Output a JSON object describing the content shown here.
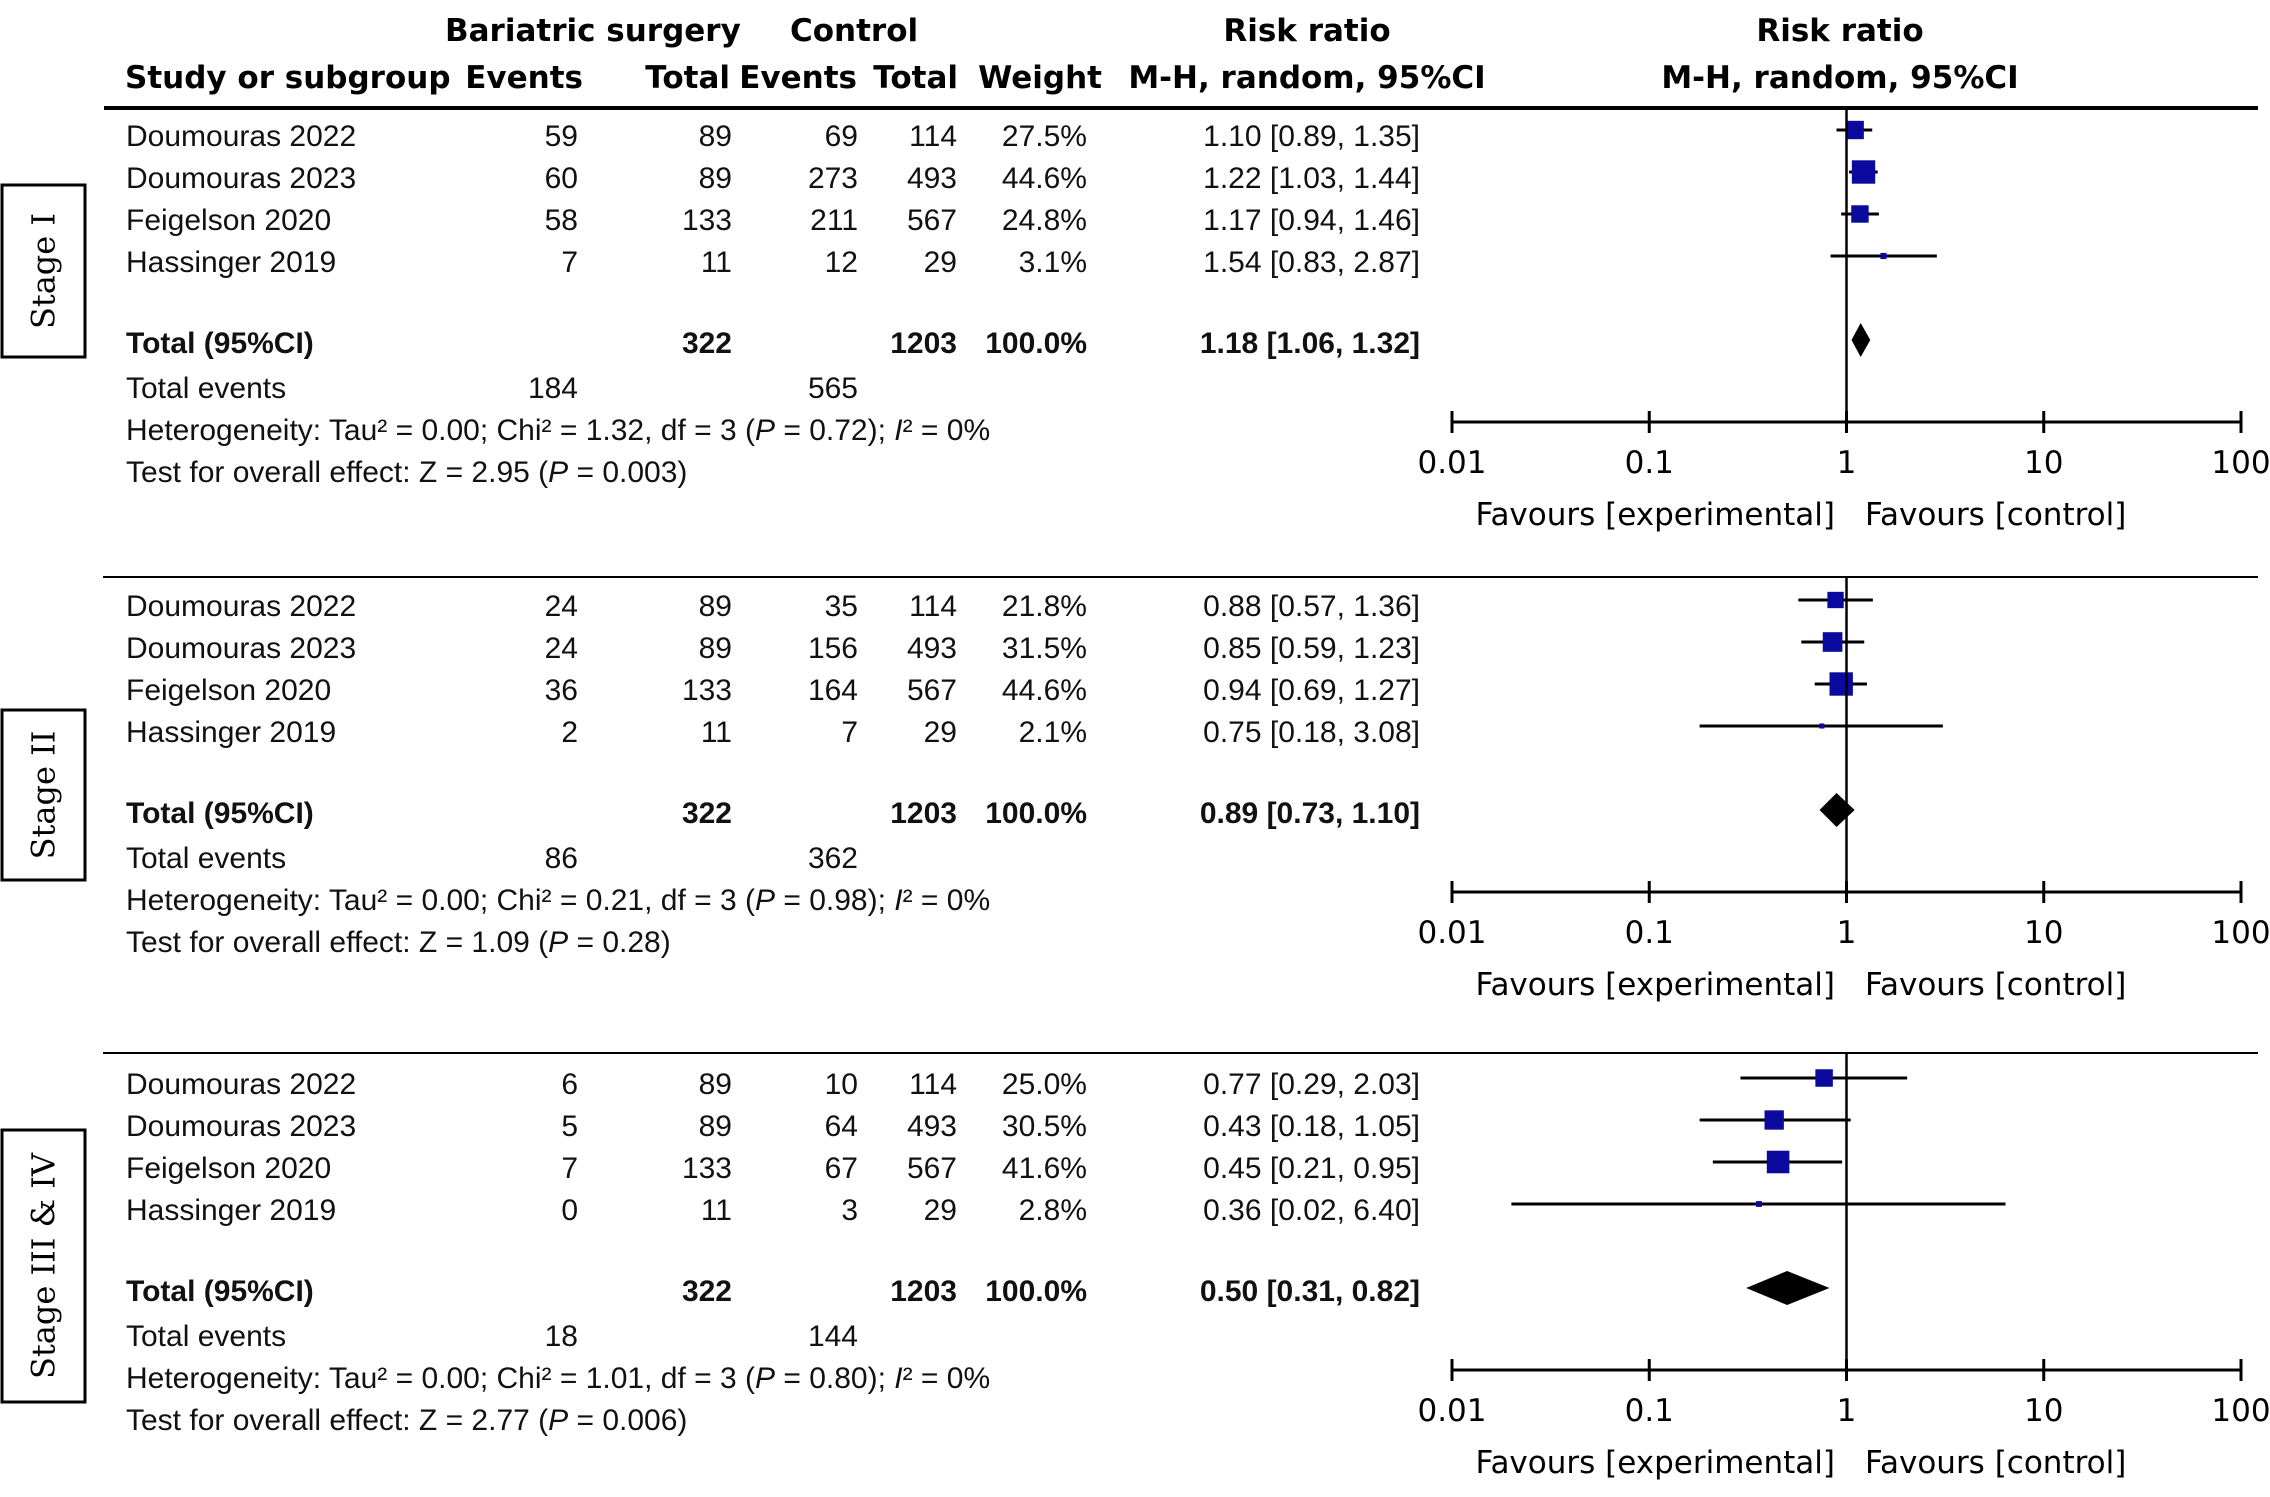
{
  "header": {
    "group1": "Bariatric surgery",
    "group2": "Control",
    "rr_text_title": "Risk ratio",
    "rr_text_sub": "M-H, random, 95%CI",
    "rr_plot_title": "Risk ratio",
    "rr_plot_sub": "M-H, random, 95%CI",
    "col_study": "Study or subgroup",
    "col_events1": "Events",
    "col_total1": "Total",
    "col_events2": "Events",
    "col_total2": "Total",
    "col_weight": "Weight"
  },
  "colors": {
    "study_marker": "#0a0a9e",
    "pooled_diamond": "#000000",
    "lines": "#000000"
  },
  "chart_data": {
    "type": "forest",
    "measure": "Risk ratio (M-H, random, 95%CI)",
    "x_scale": "log",
    "xlim": [
      0.01,
      100
    ],
    "x_ticks": [
      "0.01",
      "0.1",
      "1",
      "10",
      "100"
    ],
    "x_label_left": "Favours [experimental]",
    "x_label_right": "Favours [control]",
    "panels": [
      {
        "stage": "Stage I",
        "studies": [
          {
            "name": "Doumouras 2022",
            "e1": "59",
            "n1": "89",
            "e2": "69",
            "n2": "114",
            "weight": "27.5%",
            "weight_value": 27.5,
            "rr": 1.1,
            "lo": 0.89,
            "hi": 1.35,
            "rr_text": "1.10 [0.89, 1.35]"
          },
          {
            "name": "Doumouras 2023",
            "e1": "60",
            "n1": "89",
            "e2": "273",
            "n2": "493",
            "weight": "44.6%",
            "weight_value": 44.6,
            "rr": 1.22,
            "lo": 1.03,
            "hi": 1.44,
            "rr_text": "1.22 [1.03, 1.44]"
          },
          {
            "name": "Feigelson 2020",
            "e1": "58",
            "n1": "133",
            "e2": "211",
            "n2": "567",
            "weight": "24.8%",
            "weight_value": 24.8,
            "rr": 1.17,
            "lo": 0.94,
            "hi": 1.46,
            "rr_text": "1.17 [0.94, 1.46]"
          },
          {
            "name": "Hassinger 2019",
            "e1": "7",
            "n1": "11",
            "e2": "12",
            "n2": "29",
            "weight": "3.1%",
            "weight_value": 3.1,
            "rr": 1.54,
            "lo": 0.83,
            "hi": 2.87,
            "rr_text": "1.54 [0.83, 2.87]"
          }
        ],
        "total": {
          "label": "Total (95%CI)",
          "n1": "322",
          "n2": "1203",
          "weight": "100.0%",
          "rr": 1.18,
          "lo": 1.06,
          "hi": 1.32,
          "rr_text": "1.18 [1.06, 1.32]"
        },
        "total_events": {
          "label": "Total events",
          "e1": "184",
          "e2": "565"
        },
        "heterogeneity": {
          "prefix": "Heterogeneity: Tau² = 0.00; Chi² = 1.32, df = 3 (",
          "p_sym": "P",
          "p_val": " = 0.72); ",
          "i_sym": "I",
          "i_val": "² = 0%"
        },
        "overall": {
          "prefix": "Test for overall effect: Z = 2.95 (",
          "p_sym": "P",
          "p_val": " = 0.003)"
        }
      },
      {
        "stage": "Stage II",
        "studies": [
          {
            "name": "Doumouras 2022",
            "e1": "24",
            "n1": "89",
            "e2": "35",
            "n2": "114",
            "weight": "21.8%",
            "weight_value": 21.8,
            "rr": 0.88,
            "lo": 0.57,
            "hi": 1.36,
            "rr_text": "0.88 [0.57, 1.36]"
          },
          {
            "name": "Doumouras 2023",
            "e1": "24",
            "n1": "89",
            "e2": "156",
            "n2": "493",
            "weight": "31.5%",
            "weight_value": 31.5,
            "rr": 0.85,
            "lo": 0.59,
            "hi": 1.23,
            "rr_text": "0.85 [0.59, 1.23]"
          },
          {
            "name": "Feigelson 2020",
            "e1": "36",
            "n1": "133",
            "e2": "164",
            "n2": "567",
            "weight": "44.6%",
            "weight_value": 44.6,
            "rr": 0.94,
            "lo": 0.69,
            "hi": 1.27,
            "rr_text": "0.94 [0.69, 1.27]"
          },
          {
            "name": "Hassinger 2019",
            "e1": "2",
            "n1": "11",
            "e2": "7",
            "n2": "29",
            "weight": "2.1%",
            "weight_value": 2.1,
            "rr": 0.75,
            "lo": 0.18,
            "hi": 3.08,
            "rr_text": "0.75 [0.18, 3.08]"
          }
        ],
        "total": {
          "label": "Total (95%CI)",
          "n1": "322",
          "n2": "1203",
          "weight": "100.0%",
          "rr": 0.89,
          "lo": 0.73,
          "hi": 1.1,
          "rr_text": "0.89 [0.73, 1.10]"
        },
        "total_events": {
          "label": "Total events",
          "e1": "86",
          "e2": "362"
        },
        "heterogeneity": {
          "prefix": "Heterogeneity: Tau² = 0.00; Chi² = 0.21, df = 3 (",
          "p_sym": "P",
          "p_val": " = 0.98); ",
          "i_sym": "I",
          "i_val": "² = 0%"
        },
        "overall": {
          "prefix": "Test for overall effect: Z = 1.09 (",
          "p_sym": "P",
          "p_val": " = 0.28)"
        }
      },
      {
        "stage": "Stage III & IV",
        "studies": [
          {
            "name": "Doumouras 2022",
            "e1": "6",
            "n1": "89",
            "e2": "10",
            "n2": "114",
            "weight": "25.0%",
            "weight_value": 25.0,
            "rr": 0.77,
            "lo": 0.29,
            "hi": 2.03,
            "rr_text": "0.77 [0.29, 2.03]"
          },
          {
            "name": "Doumouras 2023",
            "e1": "5",
            "n1": "89",
            "e2": "64",
            "n2": "493",
            "weight": "30.5%",
            "weight_value": 30.5,
            "rr": 0.43,
            "lo": 0.18,
            "hi": 1.05,
            "rr_text": "0.43 [0.18, 1.05]"
          },
          {
            "name": "Feigelson 2020",
            "e1": "7",
            "n1": "133",
            "e2": "67",
            "n2": "567",
            "weight": "41.6%",
            "weight_value": 41.6,
            "rr": 0.45,
            "lo": 0.21,
            "hi": 0.95,
            "rr_text": "0.45 [0.21, 0.95]"
          },
          {
            "name": "Hassinger 2019",
            "e1": "0",
            "n1": "11",
            "e2": "3",
            "n2": "29",
            "weight": "2.8%",
            "weight_value": 2.8,
            "rr": 0.36,
            "lo": 0.02,
            "hi": 6.4,
            "rr_text": "0.36 [0.02, 6.40]"
          }
        ],
        "total": {
          "label": "Total (95%CI)",
          "n1": "322",
          "n2": "1203",
          "weight": "100.0%",
          "rr": 0.5,
          "lo": 0.31,
          "hi": 0.82,
          "rr_text": "0.50 [0.31, 0.82]"
        },
        "total_events": {
          "label": "Total events",
          "e1": "18",
          "e2": "144"
        },
        "heterogeneity": {
          "prefix": "Heterogeneity: Tau² = 0.00; Chi² = 1.01, df = 3 (",
          "p_sym": "P",
          "p_val": " = 0.80); ",
          "i_sym": "I",
          "i_val": "² = 0%"
        },
        "overall": {
          "prefix": "Test for overall effect: Z = 2.77 (",
          "p_sym": "P",
          "p_val": " = 0.006)"
        }
      }
    ]
  }
}
